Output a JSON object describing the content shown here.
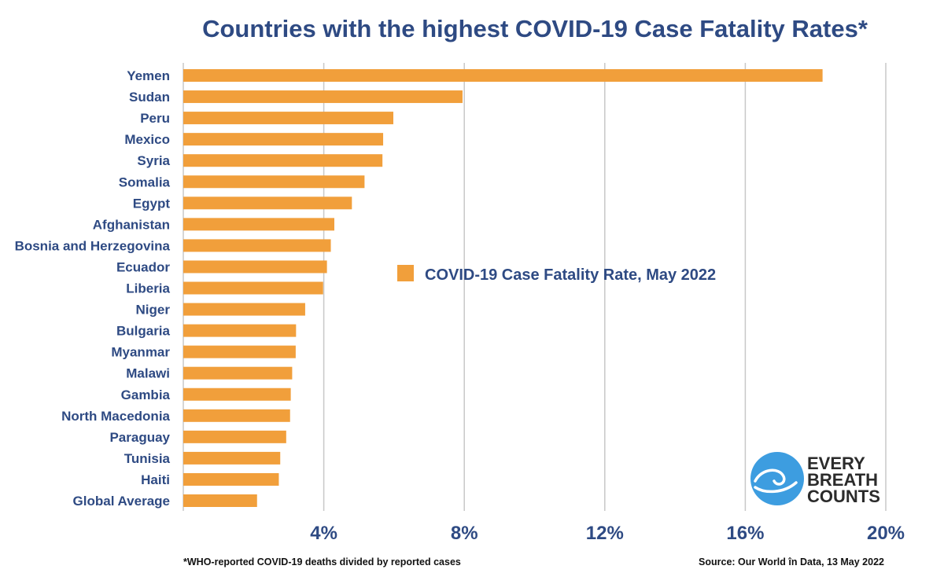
{
  "chart_data": {
    "type": "bar",
    "orientation": "horizontal",
    "title": "Countries with the highest COVID-19 Case Fatality Rates*",
    "categories": [
      "Yemen",
      "Sudan",
      "Peru",
      "Mexico",
      "Syria",
      "Somalia",
      "Egypt",
      "Afghanistan",
      "Bosnia and Herzegovina",
      "Ecuador",
      "Liberia",
      "Niger",
      "Bulgaria",
      "Myanmar",
      "Malawi",
      "Gambia",
      "North Macedonia",
      "Paraguay",
      "Tunisia",
      "Haiti",
      "Global Average"
    ],
    "series": [
      {
        "name": "COVID-19 Case Fatality Rate, May 2022",
        "values": [
          18.2,
          7.95,
          5.98,
          5.69,
          5.67,
          5.16,
          4.8,
          4.3,
          4.2,
          4.09,
          3.98,
          3.47,
          3.21,
          3.2,
          3.1,
          3.06,
          3.04,
          2.93,
          2.76,
          2.72,
          2.1
        ]
      }
    ],
    "xlabel": "",
    "ylabel": "",
    "xlim": [
      0,
      20
    ],
    "xticks": [
      4,
      8,
      12,
      16,
      20
    ],
    "xtick_labels": [
      "4%",
      "8%",
      "12%",
      "16%",
      "20%"
    ],
    "legend": "center",
    "grid": true,
    "colors": {
      "bar": "#f19f3b",
      "text": "#2e4a83",
      "grid": "#c8c8c8"
    }
  },
  "footnote": "*WHO-reported COVID-19 deaths divided by reported cases",
  "source": "Source: Our World în Data, 13 May 2022",
  "logo": {
    "lines": [
      "EVERY",
      "BREATH",
      "COUNTS"
    ],
    "circle_color": "#3d9de0"
  }
}
